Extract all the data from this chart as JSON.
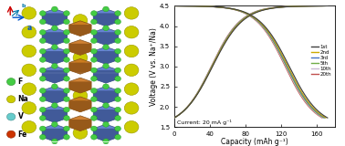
{
  "chart_xlim": [
    0,
    180
  ],
  "chart_ylim": [
    1.5,
    4.5
  ],
  "xticks": [
    0,
    40,
    80,
    120,
    160
  ],
  "yticks": [
    1.5,
    2.0,
    2.5,
    3.0,
    3.5,
    4.0,
    4.5
  ],
  "xlabel": "Capacity (mAh g⁻¹)",
  "ylabel": "Voltage (V vs. Na⁺/Na)",
  "annotation": "Current: 20 mA g⁻¹",
  "cycles": [
    {
      "label": "1st",
      "color": "#404040",
      "ls": "-",
      "cap": 172
    },
    {
      "label": "2nd",
      "color": "#ccaa00",
      "ls": "-",
      "cap": 170
    },
    {
      "label": "3rd",
      "color": "#4472c4",
      "ls": "-",
      "cap": 169
    },
    {
      "label": "5th",
      "color": "#70ad47",
      "ls": "-",
      "cap": 168
    },
    {
      "label": "10th",
      "color": "#c9b8d4",
      "ls": "-",
      "cap": 167
    },
    {
      "label": "20th",
      "color": "#c0504d",
      "ls": "-",
      "cap": 166
    }
  ],
  "crystal_bg": "#ffffff",
  "axis_color_c": "#cc0000",
  "axis_color_a": "#0000cc",
  "axis_color_b": "#0066cc",
  "legend_items": [
    {
      "label": "F",
      "color": "#44cc44"
    },
    {
      "label": "Na",
      "color": "#cccc00"
    },
    {
      "label": "V",
      "color": "#66cccc"
    },
    {
      "label": "Fe",
      "color": "#cc3300"
    }
  ]
}
